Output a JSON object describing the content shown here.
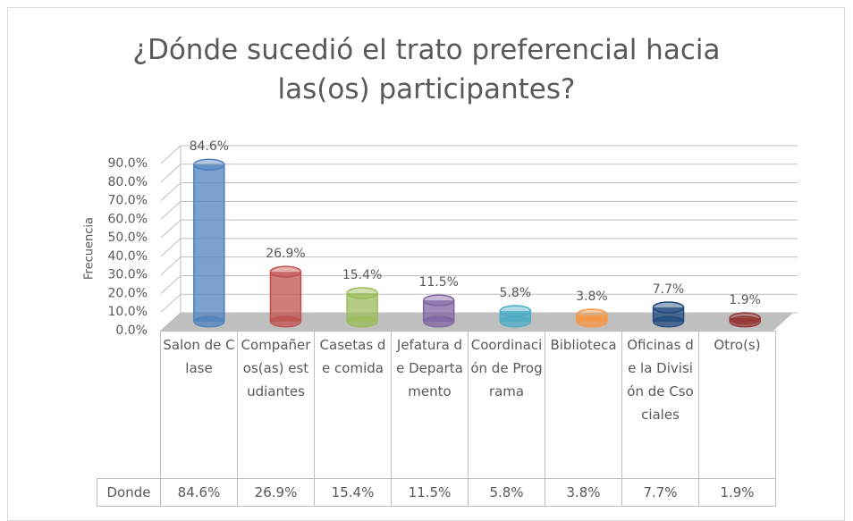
{
  "chart_data": {
    "type": "bar",
    "title": "¿Dónde sucedió el trato preferencial hacia las(os) participantes?",
    "y_label": "Frecuencia",
    "categories": [
      "Salon de Clase",
      "Compañeros(as) estudiantes",
      "Casetas de comida",
      "Jefatura de Departamento",
      "Coordinación de Programa",
      "Biblioteca",
      "Oficinas de la División de Csociales",
      "Otro(s)"
    ],
    "series": [
      {
        "name": "Donde",
        "values": [
          84.6,
          26.9,
          15.4,
          11.5,
          5.8,
          3.8,
          7.7,
          1.9
        ],
        "value_labels": [
          "84.6%",
          "26.9%",
          "15.4%",
          "11.5%",
          "5.8%",
          "3.8%",
          "7.7%",
          "1.9%"
        ],
        "colors": [
          "#4f81bd",
          "#c0504d",
          "#9bbb59",
          "#8064a2",
          "#4bacc6",
          "#f79646",
          "#1f497d",
          "#943634"
        ]
      }
    ],
    "ylim": [
      0,
      90
    ],
    "yticks": [
      {
        "value": 0,
        "label": "0.0%"
      },
      {
        "value": 10,
        "label": "10.0%"
      },
      {
        "value": 20,
        "label": "20.0%"
      },
      {
        "value": 30,
        "label": "30.0%"
      },
      {
        "value": 40,
        "label": "40.0%"
      },
      {
        "value": 50,
        "label": "50.0%"
      },
      {
        "value": 60,
        "label": "60.0%"
      },
      {
        "value": 70,
        "label": "70.0%"
      },
      {
        "value": 80,
        "label": "80.0%"
      },
      {
        "value": 90,
        "label": "90.0%"
      }
    ],
    "grid": true
  }
}
